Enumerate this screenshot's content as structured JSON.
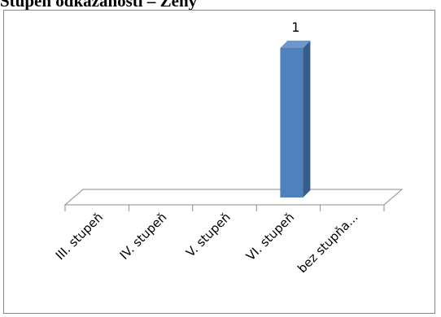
{
  "title": "Stupeň odkázanosti – Ženy",
  "chart_data": {
    "type": "bar",
    "title": "Stupeň odkázanosti – Ženy",
    "categories": [
      "III. stupeň",
      "IV. stupeň",
      "V. stupeň",
      "VI. stupeň",
      "bez stupňa..."
    ],
    "values": [
      0,
      0,
      0,
      1,
      0
    ],
    "data_labels": [
      "",
      "",
      "",
      "1",
      ""
    ],
    "ylim": [
      0,
      1
    ],
    "grid": false,
    "legend": "none",
    "bar_color": "#4F81BD",
    "bar_side_color": "#385D8A",
    "bar_top_color": "#6C96CC",
    "floor_color": "#8C8C8C"
  }
}
